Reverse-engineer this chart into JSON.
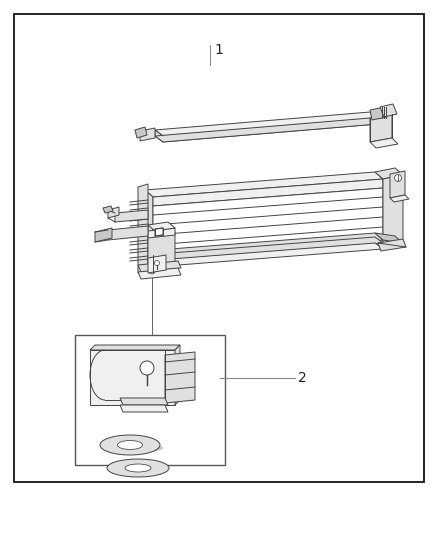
{
  "background_color": "#ffffff",
  "border_color": "#000000",
  "border_linewidth": 1.2,
  "fig_width": 4.38,
  "fig_height": 5.33,
  "dpi": 100,
  "label1_text": "1",
  "label2_text": "2",
  "line_color": "#444444",
  "fill_light": "#f0f0f0",
  "fill_mid": "#e0e0e0",
  "fill_dark": "#c8c8c8",
  "fill_white": "#ffffff",
  "part_linewidth": 0.7
}
